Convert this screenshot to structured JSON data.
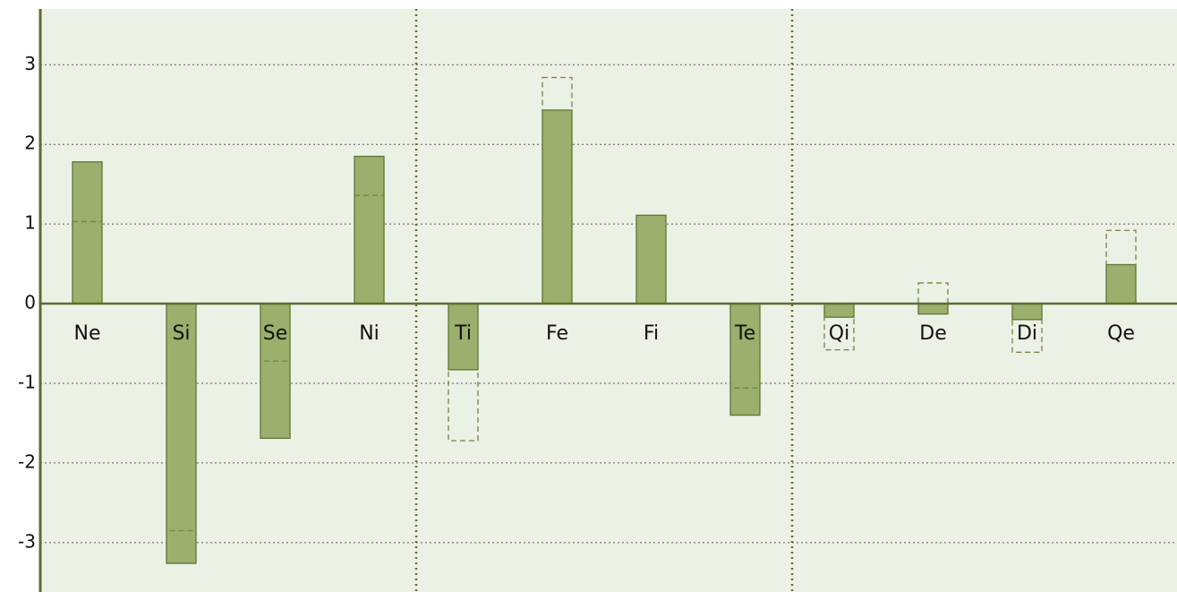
{
  "chart_data": {
    "type": "bar",
    "categories": [
      "Ne",
      "Si",
      "Se",
      "Ni",
      "Ti",
      "Fe",
      "Fi",
      "Te",
      "Qi",
      "De",
      "Di",
      "Qe"
    ],
    "series": [
      {
        "color": "#9caf6c",
        "style": "solid",
        "values": [
          1.78,
          -3.26,
          -1.69,
          1.85,
          -0.83,
          2.43,
          1.11,
          -1.4,
          -0.17,
          -0.13,
          -0.2,
          0.49
        ]
      },
      {
        "color": "#6e8440",
        "style": "dashed",
        "values": [
          1.03,
          -2.85,
          -0.72,
          1.36,
          -1.72,
          2.84,
          null,
          -1.06,
          -0.58,
          0.26,
          -0.61,
          0.92
        ]
      }
    ],
    "ylim": [
      -3.62,
      3.7
    ],
    "yticks": [
      -3,
      -2,
      -1,
      0,
      1,
      2,
      3
    ],
    "grid": true
  }
}
